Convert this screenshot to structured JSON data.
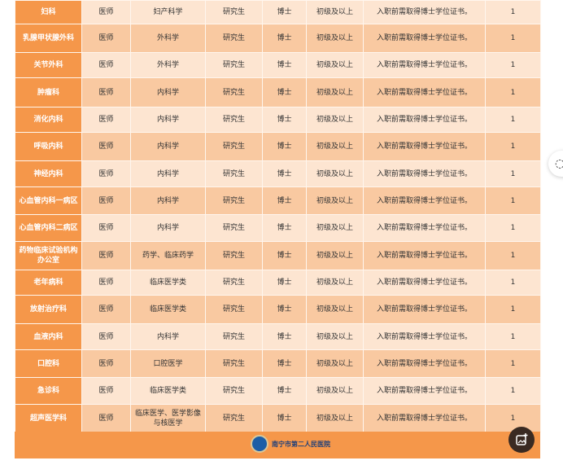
{
  "rows": [
    {
      "dept": "妇科",
      "position": "医师",
      "major": "妇产科学",
      "education": "研究生",
      "degree": "博士",
      "title": "初级及以上",
      "note": "入职前需取得博士学位证书。",
      "count": "1"
    },
    {
      "dept": "乳腺甲状腺外科",
      "position": "医师",
      "major": "外科学",
      "education": "研究生",
      "degree": "博士",
      "title": "初级及以上",
      "note": "入职前需取得博士学位证书。",
      "count": "1"
    },
    {
      "dept": "关节外科",
      "position": "医师",
      "major": "外科学",
      "education": "研究生",
      "degree": "博士",
      "title": "初级及以上",
      "note": "入职前需取得博士学位证书。",
      "count": "1"
    },
    {
      "dept": "肿瘤科",
      "position": "医师",
      "major": "内科学",
      "education": "研究生",
      "degree": "博士",
      "title": "初级及以上",
      "note": "入职前需取得博士学位证书。",
      "count": "1"
    },
    {
      "dept": "消化内科",
      "position": "医师",
      "major": "内科学",
      "education": "研究生",
      "degree": "博士",
      "title": "初级及以上",
      "note": "入职前需取得博士学位证书。",
      "count": "1"
    },
    {
      "dept": "呼吸内科",
      "position": "医师",
      "major": "内科学",
      "education": "研究生",
      "degree": "博士",
      "title": "初级及以上",
      "note": "入职前需取得博士学位证书。",
      "count": "1"
    },
    {
      "dept": "神经内科",
      "position": "医师",
      "major": "内科学",
      "education": "研究生",
      "degree": "博士",
      "title": "初级及以上",
      "note": "入职前需取得博士学位证书。",
      "count": "1"
    },
    {
      "dept": "心血管内科一病区",
      "position": "医师",
      "major": "内科学",
      "education": "研究生",
      "degree": "博士",
      "title": "初级及以上",
      "note": "入职前需取得博士学位证书。",
      "count": "1"
    },
    {
      "dept": "心血管内科二病区",
      "position": "医师",
      "major": "内科学",
      "education": "研究生",
      "degree": "博士",
      "title": "初级及以上",
      "note": "入职前需取得博士学位证书。",
      "count": "1"
    },
    {
      "dept": "药物临床试验机构办公室",
      "position": "医师",
      "major": "药学、临床药学",
      "education": "研究生",
      "degree": "博士",
      "title": "初级及以上",
      "note": "入职前需取得博士学位证书。",
      "count": "1"
    },
    {
      "dept": "老年病科",
      "position": "医师",
      "major": "临床医学类",
      "education": "研究生",
      "degree": "博士",
      "title": "初级及以上",
      "note": "入职前需取得博士学位证书。",
      "count": "1"
    },
    {
      "dept": "放射治疗科",
      "position": "医师",
      "major": "临床医学类",
      "education": "研究生",
      "degree": "博士",
      "title": "初级及以上",
      "note": "入职前需取得博士学位证书。",
      "count": "1"
    },
    {
      "dept": "血液内科",
      "position": "医师",
      "major": "内科学",
      "education": "研究生",
      "degree": "博士",
      "title": "初级及以上",
      "note": "入职前需取得博士学位证书。",
      "count": "1"
    },
    {
      "dept": "口腔科",
      "position": "医师",
      "major": "口腔医学",
      "education": "研究生",
      "degree": "博士",
      "title": "初级及以上",
      "note": "入职前需取得博士学位证书。",
      "count": "1"
    },
    {
      "dept": "急诊科",
      "position": "医师",
      "major": "临床医学类",
      "education": "研究生",
      "degree": "博士",
      "title": "初级及以上",
      "note": "入职前需取得博士学位证书。",
      "count": "1"
    },
    {
      "dept": "超声医学科",
      "position": "医师",
      "major": "临床医学、医学影像与核医学",
      "education": "研究生",
      "degree": "博士",
      "title": "初级及以上",
      "note": "入职前需取得博士学位证书。",
      "count": "1"
    }
  ],
  "footer": {
    "hospital_name": "南宁市第二人民医院"
  },
  "colors": {
    "dept_column": "#f5974a",
    "row_light": "#fde5d1",
    "row_dark": "#f9c9a1"
  },
  "icons": {
    "side_button": "chat-icon",
    "fab": "add-image-icon"
  }
}
